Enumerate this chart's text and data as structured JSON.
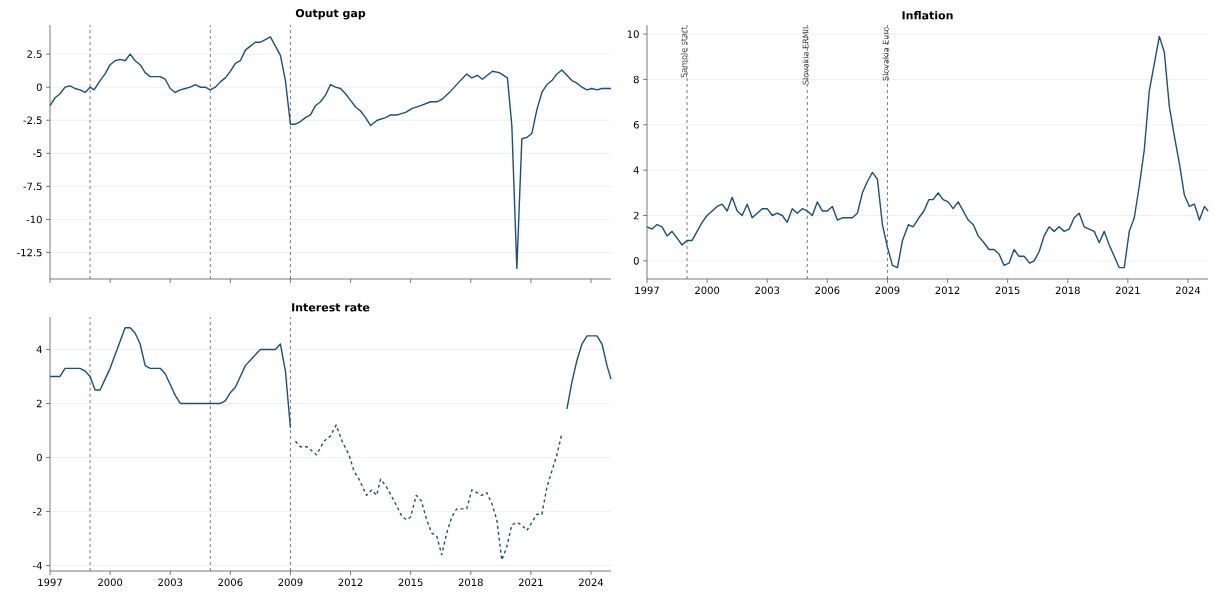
{
  "chart_data": [
    {
      "type": "line",
      "title": "Output gap",
      "color": "#1f4e79",
      "grid": "y",
      "tick_labels": "y",
      "xlim": [
        1997,
        2025
      ],
      "xticks": [
        1997,
        2000,
        2003,
        2006,
        2009,
        2012,
        2015,
        2018,
        2021,
        2024
      ],
      "ylim": [
        -14.5,
        4.7
      ],
      "yticks": [
        -12.5,
        -10,
        -7.5,
        -5,
        -2.5,
        0,
        2.5
      ],
      "ref_lines": [
        {
          "axis": "x",
          "value": 1999,
          "color": "#444444",
          "line_style": "dashed"
        },
        {
          "axis": "x",
          "value": 2005,
          "color": "#444444",
          "line_style": "dashed"
        },
        {
          "axis": "x",
          "value": 2009,
          "color": "#444444",
          "line_style": "dashed"
        }
      ],
      "x": [
        1997.0,
        1997.25,
        1997.5,
        1997.75,
        1998.0,
        1998.25,
        1998.5,
        1998.75,
        1999.0,
        1999.2,
        1999.5,
        1999.75,
        2000.0,
        2000.25,
        2000.5,
        2000.75,
        2001.0,
        2001.25,
        2001.5,
        2001.75,
        2002.0,
        2002.5,
        2002.75,
        2003.0,
        2003.25,
        2003.5,
        2003.75,
        2004.0,
        2004.25,
        2004.5,
        2004.75,
        2005.0,
        2005.25,
        2005.5,
        2005.75,
        2006.0,
        2006.25,
        2006.5,
        2006.75,
        2007.0,
        2007.25,
        2007.5,
        2007.75,
        2008.0,
        2008.25,
        2008.5,
        2008.75,
        2009.0,
        2009.25,
        2009.5,
        2009.75,
        2010.0,
        2010.25,
        2010.5,
        2010.75,
        2011.0,
        2011.25,
        2011.5,
        2011.75,
        2012.0,
        2012.25,
        2012.5,
        2012.75,
        2013.0,
        2013.33,
        2013.75,
        2014.0,
        2014.33,
        2014.75,
        2015.08,
        2015.5,
        2016.0,
        2016.33,
        2016.58,
        2017.0,
        2017.42,
        2017.8,
        2018.05,
        2018.33,
        2018.58,
        2019.08,
        2019.42,
        2019.83,
        2020.05,
        2020.3,
        2020.55,
        2020.8,
        2021.05,
        2021.3,
        2021.55,
        2021.8,
        2022.05,
        2022.3,
        2022.55,
        2022.8,
        2023.05,
        2023.3,
        2023.55,
        2023.8,
        2024.05,
        2024.3,
        2024.55,
        2024.8,
        2025.0
      ],
      "values": [
        -1.4,
        -0.8,
        -0.5,
        0.0,
        0.1,
        -0.1,
        -0.2,
        -0.4,
        0.0,
        -0.2,
        0.5,
        1.0,
        1.7,
        2.0,
        2.1,
        2.0,
        2.5,
        2.0,
        1.7,
        1.1,
        0.8,
        0.8,
        0.6,
        -0.1,
        -0.4,
        -0.2,
        -0.1,
        0.0,
        0.2,
        0.0,
        0.0,
        -0.2,
        0.0,
        0.4,
        0.7,
        1.2,
        1.8,
        2.0,
        2.8,
        3.1,
        3.4,
        3.4,
        3.6,
        3.8,
        3.1,
        2.4,
        0.5,
        -2.8,
        -2.8,
        -2.6,
        -2.3,
        -2.1,
        -1.4,
        -1.1,
        -0.6,
        0.2,
        0.0,
        -0.1,
        -0.5,
        -1.0,
        -1.5,
        -1.8,
        -2.3,
        -2.9,
        -2.5,
        -2.3,
        -2.1,
        -2.1,
        -1.9,
        -1.6,
        -1.4,
        -1.1,
        -1.1,
        -0.9,
        -0.3,
        0.4,
        1.0,
        0.7,
        0.9,
        0.6,
        1.2,
        1.1,
        0.7,
        -2.9,
        -13.7,
        -3.9,
        -3.8,
        -3.5,
        -1.7,
        -0.4,
        0.2,
        0.5,
        1.0,
        1.3,
        0.9,
        0.5,
        0.3,
        0.0,
        -0.2,
        -0.1,
        -0.2,
        -0.1,
        -0.1,
        -0.1
      ]
    },
    {
      "type": "line",
      "title": "Inflation",
      "color": "#1f4e79",
      "grid": "y",
      "xlim": [
        1997,
        2025
      ],
      "xticks": [
        1997,
        2000,
        2003,
        2006,
        2009,
        2012,
        2015,
        2018,
        2021,
        2024
      ],
      "ylim": [
        -0.8,
        10.4
      ],
      "yticks": [
        0,
        2,
        4,
        6,
        8,
        10
      ],
      "ref_lines": [
        {
          "axis": "x",
          "value": 1999,
          "label": "Sample start",
          "color": "#444444",
          "line_style": "dashed"
        },
        {
          "axis": "x",
          "value": 2005,
          "label": "Slovakia ERMII",
          "color": "#444444",
          "line_style": "dashed"
        },
        {
          "axis": "x",
          "value": 2009,
          "label": "Slovakia Euro",
          "color": "#444444",
          "line_style": "dashed"
        }
      ],
      "x": [
        1997.0,
        1997.25,
        1997.5,
        1997.75,
        1998.0,
        1998.25,
        1998.5,
        1998.75,
        1999.0,
        1999.25,
        1999.5,
        1999.75,
        2000.0,
        2000.25,
        2000.5,
        2000.75,
        2001.0,
        2001.25,
        2001.5,
        2001.75,
        2002.0,
        2002.25,
        2002.5,
        2002.75,
        2003.0,
        2003.25,
        2003.5,
        2003.75,
        2004.0,
        2004.25,
        2004.5,
        2004.75,
        2005.0,
        2005.25,
        2005.5,
        2005.75,
        2006.0,
        2006.25,
        2006.5,
        2006.75,
        2007.0,
        2007.25,
        2007.5,
        2007.75,
        2008.0,
        2008.25,
        2008.5,
        2008.75,
        2009.0,
        2009.25,
        2009.5,
        2009.75,
        2010.05,
        2010.28,
        2010.57,
        2010.82,
        2011.07,
        2011.28,
        2011.53,
        2011.78,
        2012.03,
        2012.28,
        2012.53,
        2012.78,
        2013.03,
        2013.28,
        2013.53,
        2013.82,
        2014.07,
        2014.32,
        2014.57,
        2014.82,
        2015.07,
        2015.32,
        2015.57,
        2015.82,
        2016.1,
        2016.32,
        2016.57,
        2016.82,
        2017.07,
        2017.32,
        2017.57,
        2017.82,
        2018.07,
        2018.32,
        2018.57,
        2018.82,
        2019.07,
        2019.32,
        2019.57,
        2019.82,
        2020.07,
        2020.32,
        2020.57,
        2020.82,
        2021.07,
        2021.32,
        2021.57,
        2021.82,
        2022.07,
        2022.32,
        2022.57,
        2022.82,
        2023.07,
        2023.32,
        2023.57,
        2023.82,
        2024.07,
        2024.32,
        2024.57,
        2024.82,
        2025.0
      ],
      "values": [
        1.5,
        1.4,
        1.6,
        1.5,
        1.1,
        1.3,
        1.0,
        0.7,
        0.9,
        0.9,
        1.3,
        1.7,
        2.0,
        2.2,
        2.4,
        2.5,
        2.2,
        2.8,
        2.2,
        2.0,
        2.5,
        1.9,
        2.1,
        2.3,
        2.3,
        2.0,
        2.1,
        2.0,
        1.7,
        2.3,
        2.1,
        2.3,
        2.2,
        2.0,
        2.6,
        2.2,
        2.2,
        2.4,
        1.8,
        1.9,
        1.9,
        1.9,
        2.1,
        3.0,
        3.5,
        3.9,
        3.6,
        1.6,
        0.6,
        -0.2,
        -0.3,
        0.9,
        1.6,
        1.5,
        1.9,
        2.2,
        2.7,
        2.7,
        3.0,
        2.7,
        2.6,
        2.3,
        2.6,
        2.2,
        1.8,
        1.6,
        1.1,
        0.8,
        0.5,
        0.5,
        0.3,
        -0.2,
        -0.1,
        0.5,
        0.2,
        0.2,
        -0.1,
        0.0,
        0.4,
        1.1,
        1.5,
        1.3,
        1.5,
        1.3,
        1.4,
        1.9,
        2.1,
        1.5,
        1.4,
        1.3,
        0.8,
        1.3,
        0.7,
        0.2,
        -0.3,
        -0.3,
        1.3,
        1.9,
        3.3,
        4.9,
        7.5,
        8.7,
        9.9,
        9.2,
        6.8,
        5.5,
        4.3,
        2.9,
        2.4,
        2.5,
        1.8,
        2.4,
        2.2
      ]
    },
    {
      "type": "line",
      "title": "Interest rate",
      "grid": "y",
      "xlim": [
        1997,
        2025
      ],
      "xticks": [
        1997,
        2000,
        2003,
        2006,
        2009,
        2012,
        2015,
        2018,
        2021,
        2024
      ],
      "ylim": [
        -4.2,
        5.2
      ],
      "yticks": [
        -4,
        -2,
        0,
        2,
        4
      ],
      "ref_lines": [
        {
          "axis": "x",
          "value": 1999,
          "color": "#444444",
          "line_style": "dashed"
        },
        {
          "axis": "x",
          "value": 2005,
          "color": "#444444",
          "line_style": "dashed"
        },
        {
          "axis": "x",
          "value": 2009,
          "color": "#444444",
          "line_style": "dashed"
        }
      ],
      "series": [
        {
          "color": "#1f4e79",
          "line_style": "solid",
          "x": [
            1997.0,
            1997.5,
            1997.75,
            1998.5,
            1998.75,
            1999.0,
            1999.25,
            1999.5,
            1999.75,
            2000.0,
            2000.25,
            2000.5,
            2000.75,
            2001.0,
            2001.25,
            2001.5,
            2001.75,
            2002.0,
            2002.5,
            2002.75,
            2003.0,
            2003.25,
            2003.5,
            2005.5,
            2005.75,
            2006.0,
            2006.25,
            2006.5,
            2006.75,
            2007.0,
            2007.25,
            2007.5,
            2008.25,
            2008.5,
            2008.75,
            2009.0,
            2016.0,
            2022.8,
            2023.05,
            2023.3,
            2023.55,
            2023.8,
            2024.05,
            2024.3,
            2024.55,
            2024.8,
            2025.0
          ],
          "values": [
            3.0,
            3.0,
            3.3,
            3.3,
            3.2,
            3.0,
            2.5,
            2.5,
            2.9,
            3.3,
            3.8,
            4.3,
            4.8,
            4.8,
            4.6,
            4.2,
            3.4,
            3.3,
            3.3,
            3.1,
            2.7,
            2.3,
            2.0,
            2.0,
            2.1,
            2.4,
            2.6,
            3.0,
            3.4,
            3.6,
            3.8,
            4.0,
            4.0,
            4.2,
            3.2,
            1.1,
            null,
            1.8,
            2.8,
            3.6,
            4.2,
            4.5,
            4.5,
            4.5,
            4.2,
            3.4,
            2.9
          ]
        },
        {
          "color": "#1f4e79",
          "line_style": "dashed",
          "x": [
            2009.25,
            2009.5,
            2009.83,
            2010.3,
            2010.67,
            2011.0,
            2011.28,
            2011.58,
            2011.92,
            2012.17,
            2012.42,
            2012.8,
            2013.05,
            2013.3,
            2013.5,
            2013.8,
            2014.17,
            2014.58,
            2014.8,
            2015.0,
            2015.28,
            2015.53,
            2015.8,
            2016.05,
            2016.3,
            2016.55,
            2016.8,
            2017.05,
            2017.3,
            2017.55,
            2017.8,
            2018.05,
            2018.3,
            2018.55,
            2018.8,
            2019.05,
            2019.3,
            2019.55,
            2019.8,
            2020.05,
            2020.3,
            2020.55,
            2020.8,
            2021.05,
            2021.3,
            2021.55,
            2021.8,
            2022.05,
            2022.3,
            2022.55
          ],
          "values": [
            0.6,
            0.4,
            0.4,
            0.1,
            0.6,
            0.8,
            1.2,
            0.6,
            0.1,
            -0.5,
            -0.8,
            -1.4,
            -1.2,
            -1.4,
            -0.8,
            -1.1,
            -1.6,
            -2.2,
            -2.3,
            -2.2,
            -1.4,
            -1.6,
            -2.3,
            -2.8,
            -2.9,
            -3.6,
            -2.8,
            -2.2,
            -1.9,
            -1.9,
            -1.9,
            -1.2,
            -1.3,
            -1.4,
            -1.3,
            -1.7,
            -2.3,
            -3.8,
            -3.3,
            -2.5,
            -2.4,
            -2.5,
            -2.7,
            -2.4,
            -2.1,
            -2.1,
            -1.1,
            -0.5,
            0.1,
            0.9
          ]
        }
      ]
    }
  ]
}
